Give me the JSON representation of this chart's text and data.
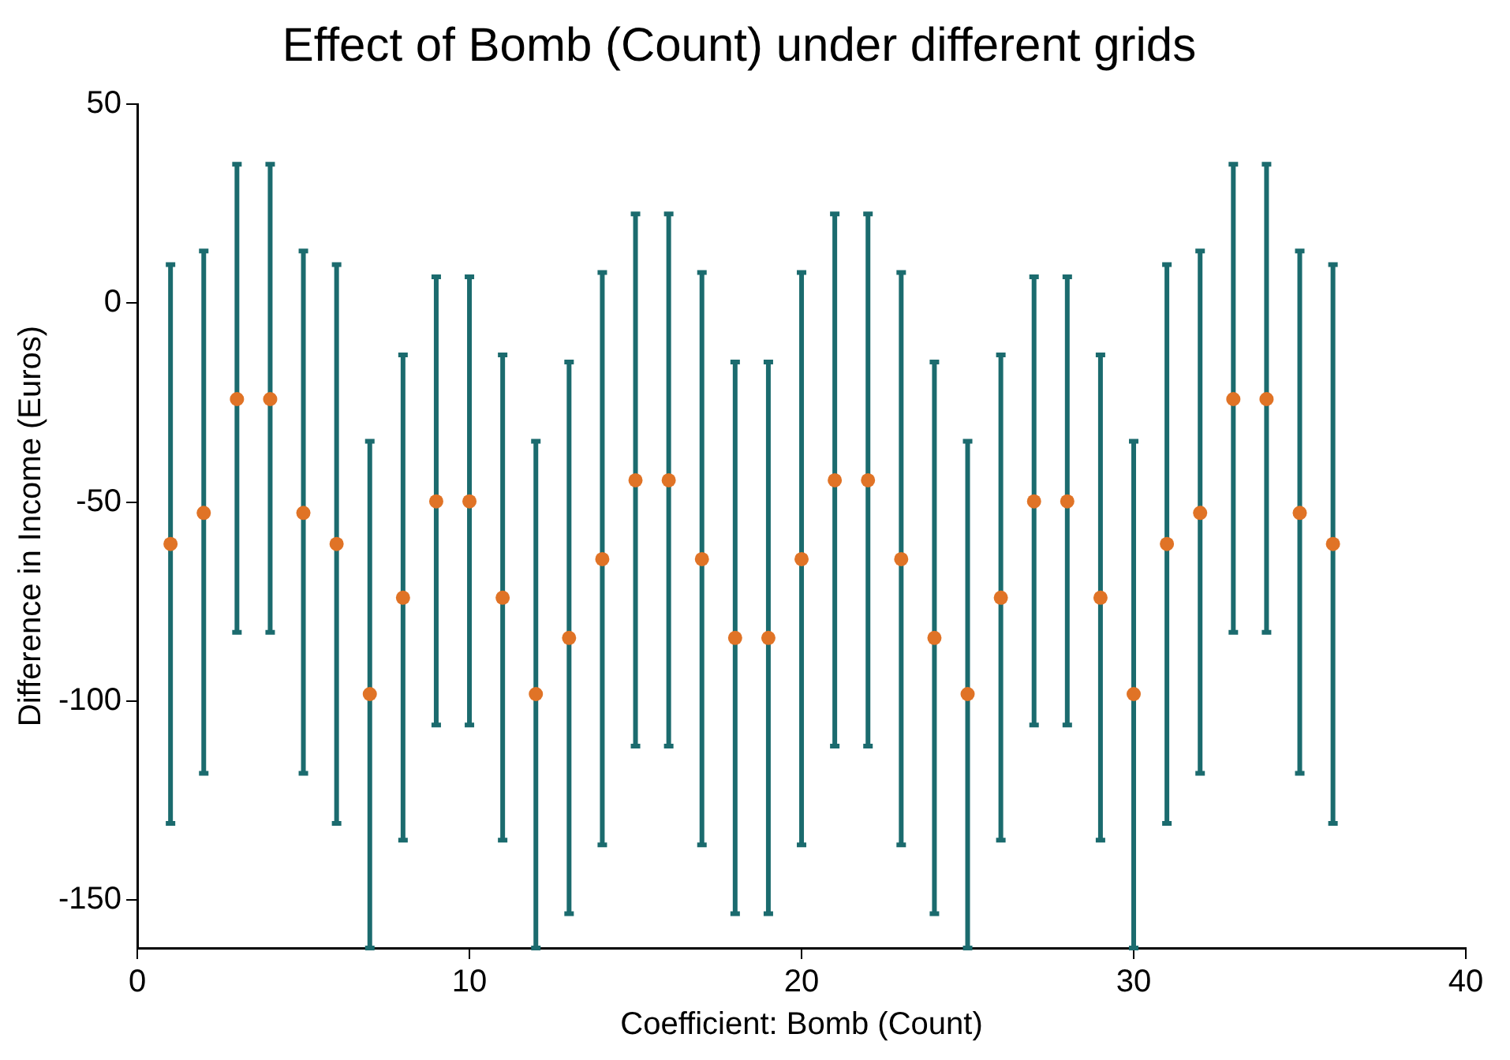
{
  "chart_data": {
    "type": "scatter",
    "title": "Effect of Bomb (Count) under different grids",
    "xlabel": "Coefficient: Bomb (Count)",
    "ylabel": "Difference in Income (Euros)",
    "x": [
      1,
      2,
      3,
      4,
      5,
      6,
      7,
      8,
      9,
      10,
      11,
      12,
      13,
      14,
      15,
      16,
      17,
      18,
      19,
      20,
      21,
      22,
      23,
      24,
      25,
      26,
      27,
      28,
      29,
      30,
      31,
      32,
      33,
      34,
      35,
      36
    ],
    "series": [
      {
        "color": "#e07326",
        "values": [
          -60.5,
          -52.7,
          -24.1,
          -24.1,
          -52.7,
          -60.5,
          -98.2,
          -74,
          -49.8,
          -49.8,
          -74,
          -98.2,
          -84.1,
          -64.3,
          -44.5,
          -44.5,
          -64.3,
          -84.1,
          -84.1,
          -64.3,
          -44.5,
          -44.5,
          -64.3,
          -84.1,
          -98.2,
          -74,
          -49.8,
          -49.8,
          -74,
          -98.2,
          -60.5,
          -52.7,
          -24.1,
          -24.1,
          -52.7,
          -60.5
        ],
        "errors": [
          [
            -130.7,
            9.7
          ],
          [
            -118.1,
            13.1
          ],
          [
            -82.7,
            34.9
          ],
          [
            -82.7,
            34.9
          ],
          [
            -118.1,
            13.1
          ],
          [
            -130.7,
            9.7
          ],
          [
            -162,
            -34.7
          ],
          [
            -134.9,
            -13
          ],
          [
            -106,
            6.6
          ],
          [
            -106,
            6.6
          ],
          [
            -134.9,
            -13
          ],
          [
            -162,
            -34.7
          ],
          [
            -153.4,
            -14.8
          ],
          [
            -136.1,
            7.7
          ],
          [
            -111.3,
            22.4
          ],
          [
            -111.3,
            22.4
          ],
          [
            -136.1,
            7.7
          ],
          [
            -153.4,
            -14.8
          ],
          [
            -153.4,
            -14.8
          ],
          [
            -136.1,
            7.7
          ],
          [
            -111.3,
            22.4
          ],
          [
            -111.3,
            22.4
          ],
          [
            -136.1,
            7.7
          ],
          [
            -153.4,
            -14.8
          ],
          [
            -162,
            -34.7
          ],
          [
            -134.9,
            -13
          ],
          [
            -106,
            6.6
          ],
          [
            -106,
            6.6
          ],
          [
            -134.9,
            -13
          ],
          [
            -162,
            -34.7
          ],
          [
            -130.7,
            9.7
          ],
          [
            -118.1,
            13.1
          ],
          [
            -82.7,
            34.9
          ],
          [
            -82.7,
            34.9
          ],
          [
            -118.1,
            13.1
          ],
          [
            -130.7,
            9.7
          ]
        ]
      }
    ],
    "xlim": [
      0,
      40
    ],
    "xticks": [
      0,
      10,
      20,
      30,
      40
    ],
    "ylim": [
      -162,
      50
    ],
    "yticks": [
      50,
      0,
      -50,
      -100,
      -150
    ],
    "marker": "circle",
    "grid": false,
    "legend": false
  }
}
